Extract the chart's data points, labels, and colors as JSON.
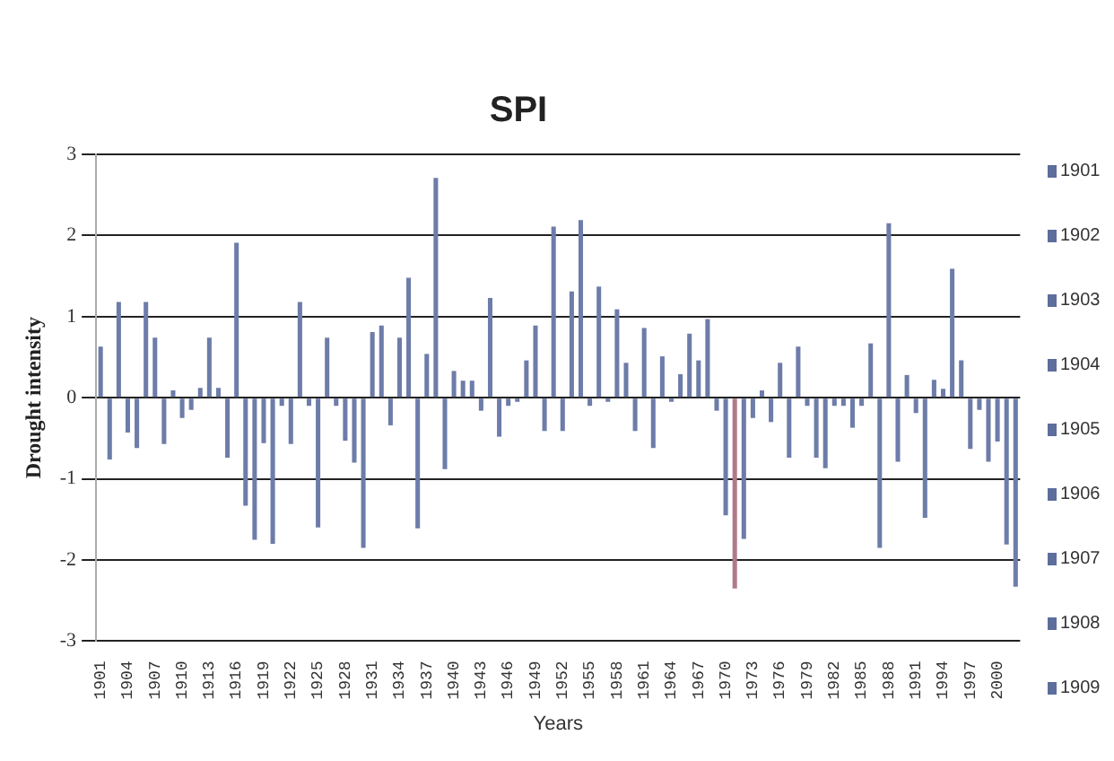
{
  "chart_data": {
    "type": "bar",
    "title": "SPI",
    "xlabel": "Years",
    "ylabel": "Drought intensity",
    "categories": [
      "1901",
      null,
      null,
      "1904",
      null,
      null,
      "1907",
      null,
      null,
      "1910",
      null,
      null,
      "1913",
      null,
      null,
      "1916",
      null,
      null,
      "1919",
      null,
      null,
      "1922",
      null,
      null,
      "1925",
      null,
      null,
      "1928",
      null,
      null,
      "1931",
      null,
      null,
      "1934",
      null,
      null,
      "1937",
      null,
      null,
      "1940",
      null,
      null,
      "1943",
      null,
      null,
      "1946",
      null,
      null,
      "1949",
      null,
      null,
      "1952",
      null,
      null,
      "1955",
      null,
      null,
      "1958",
      null,
      null,
      "1961",
      null,
      null,
      "1964",
      null,
      null,
      "1967",
      null,
      null,
      "1970",
      null,
      null,
      "1973",
      null,
      null,
      "1976",
      null,
      null,
      "1979",
      null,
      null,
      "1982",
      null,
      null,
      "1985",
      null,
      null,
      "1988",
      null,
      null,
      "1991",
      null,
      null,
      "1994",
      null,
      null,
      "1997",
      null,
      null,
      "2000",
      null,
      null
    ],
    "values": [
      0.63,
      -0.76,
      1.18,
      -0.43,
      -0.62,
      1.18,
      0.74,
      -0.57,
      0.09,
      -0.25,
      -0.15,
      0.12,
      0.74,
      0.12,
      -0.74,
      1.91,
      -1.33,
      -1.75,
      -0.56,
      -1.8,
      -0.1,
      -0.57,
      1.18,
      -0.1,
      -1.6,
      0.74,
      -0.1,
      -0.53,
      -0.8,
      -1.85,
      0.81,
      0.89,
      -0.34,
      0.74,
      1.48,
      -1.61,
      0.54,
      2.71,
      -0.88,
      0.33,
      0.21,
      0.21,
      -0.16,
      1.23,
      -0.48,
      -0.1,
      -0.05,
      0.46,
      0.89,
      -0.41,
      2.11,
      -0.41,
      1.31,
      2.19,
      -0.1,
      1.37,
      -0.05,
      1.09,
      0.43,
      -0.41,
      0.86,
      -0.62,
      0.51,
      -0.05,
      0.29,
      0.79,
      0.46,
      0.97,
      -0.16,
      -1.45,
      -2.35,
      -1.74,
      -0.25,
      0.09,
      -0.3,
      0.43,
      -0.74,
      0.63,
      -0.1,
      -0.74,
      -0.87,
      -0.1,
      -0.1,
      -0.37,
      -0.1,
      0.67,
      -1.85,
      2.15,
      -0.79,
      0.28,
      -0.19,
      -1.48,
      0.22,
      0.11,
      1.59,
      0.46,
      -0.63,
      -0.15,
      -0.79,
      -0.54,
      -1.81,
      -2.33
    ],
    "colors": [
      "#6d7ca9",
      "#6d7ca9",
      "#6d7ca9",
      "#6d7ca9",
      "#6d7ca9",
      "#6d7ca9",
      "#6d7ca9",
      "#6d7ca9",
      "#6d7ca9",
      "#6d7ca9",
      "#6d7ca9",
      "#6d7ca9",
      "#6d7ca9",
      "#6d7ca9",
      "#6d7ca9",
      "#6d7ca9",
      "#6d7ca9",
      "#6d7ca9",
      "#6d7ca9",
      "#6d7ca9",
      "#6d7ca9",
      "#6d7ca9",
      "#6d7ca9",
      "#6d7ca9",
      "#6d7ca9",
      "#6d7ca9",
      "#6d7ca9",
      "#6d7ca9",
      "#6d7ca9",
      "#6d7ca9",
      "#6d7ca9",
      "#6d7ca9",
      "#6d7ca9",
      "#6d7ca9",
      "#6d7ca9",
      "#6d7ca9",
      "#6d7ca9",
      "#6d7ca9",
      "#6d7ca9",
      "#6d7ca9",
      "#6d7ca9",
      "#6d7ca9",
      "#6d7ca9",
      "#6d7ca9",
      "#6d7ca9",
      "#6d7ca9",
      "#6d7ca9",
      "#6d7ca9",
      "#6d7ca9",
      "#6d7ca9",
      "#6d7ca9",
      "#6d7ca9",
      "#6d7ca9",
      "#6d7ca9",
      "#6d7ca9",
      "#6d7ca9",
      "#6d7ca9",
      "#6d7ca9",
      "#6d7ca9",
      "#6d7ca9",
      "#6d7ca9",
      "#6d7ca9",
      "#6d7ca9",
      "#6d7ca9",
      "#6d7ca9",
      "#6d7ca9",
      "#6d7ca9",
      "#6d7ca9",
      "#6d7ca9",
      "#6d7ca9",
      "#b07a88",
      "#6d7ca9",
      "#6d7ca9",
      "#6d7ca9",
      "#6d7ca9",
      "#6d7ca9",
      "#6d7ca9",
      "#6d7ca9",
      "#6d7ca9",
      "#6d7ca9",
      "#6d7ca9",
      "#6d7ca9",
      "#6d7ca9",
      "#6d7ca9",
      "#6d7ca9",
      "#6d7ca9",
      "#6d7ca9",
      "#6d7ca9",
      "#6d7ca9",
      "#6d7ca9",
      "#6d7ca9",
      "#6d7ca9",
      "#6d7ca9",
      "#6d7ca9",
      "#6d7ca9",
      "#6d7ca9",
      "#6d7ca9",
      "#6d7ca9",
      "#6d7ca9",
      "#6d7ca9",
      "#6d7ca9",
      "#6d7ca9"
    ],
    "annotations": [
      "1901",
      "1902",
      "1903",
      "1904",
      "1905",
      "1906",
      "1907",
      "1908",
      "1909"
    ],
    "ylim": [
      -3,
      3
    ],
    "yticks": [
      -3,
      -2,
      -1,
      0,
      1,
      2,
      3
    ],
    "grid": "y"
  }
}
